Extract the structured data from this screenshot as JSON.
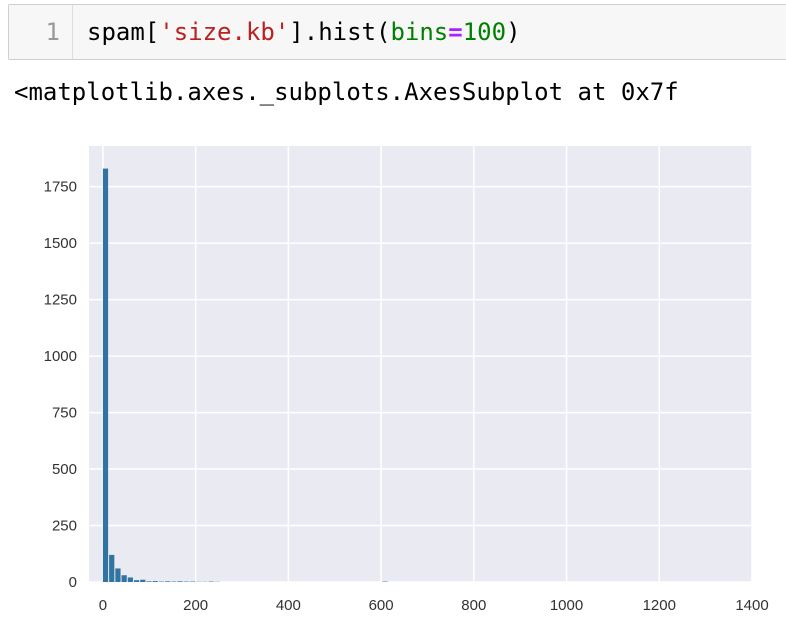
{
  "cell": {
    "line_number": "1",
    "code": {
      "obj": "spam[",
      "str": "'size.kb'",
      "mid": "].hist",
      "open": "(",
      "kw": "bins",
      "op": "=",
      "num": "100",
      "close": ")"
    }
  },
  "output": {
    "text": "<matplotlib.axes._subplots.AxesSubplot at 0x7f"
  },
  "colors": {
    "bar": "#3274a1",
    "axes_bg": "#eaeaf2",
    "grid": "#ffffff"
  },
  "chart_data": {
    "type": "bar",
    "title": "",
    "xlabel": "",
    "ylabel": "",
    "grid": true,
    "xlim": [
      -30,
      1400
    ],
    "ylim": [
      0,
      1930
    ],
    "x_ticks": [
      0,
      200,
      400,
      600,
      800,
      1000,
      1200,
      1400
    ],
    "y_ticks": [
      0,
      250,
      500,
      750,
      1000,
      1250,
      1500,
      1750
    ],
    "bin_width": 13.4,
    "bins": [
      {
        "x": 0,
        "value": 1830
      },
      {
        "x": 13.4,
        "value": 120
      },
      {
        "x": 26.8,
        "value": 60
      },
      {
        "x": 40.2,
        "value": 30
      },
      {
        "x": 53.6,
        "value": 20
      },
      {
        "x": 67,
        "value": 8
      },
      {
        "x": 80.4,
        "value": 10
      },
      {
        "x": 93.8,
        "value": 3
      },
      {
        "x": 107.2,
        "value": 4
      },
      {
        "x": 120.6,
        "value": 2
      },
      {
        "x": 134,
        "value": 3
      },
      {
        "x": 147.4,
        "value": 2
      },
      {
        "x": 160.8,
        "value": 3
      },
      {
        "x": 174.2,
        "value": 2
      },
      {
        "x": 187.6,
        "value": 2
      },
      {
        "x": 201,
        "value": 1
      },
      {
        "x": 214.4,
        "value": 1
      },
      {
        "x": 227.8,
        "value": 2
      },
      {
        "x": 241.2,
        "value": 1
      },
      {
        "x": 603,
        "value": 2
      }
    ]
  }
}
